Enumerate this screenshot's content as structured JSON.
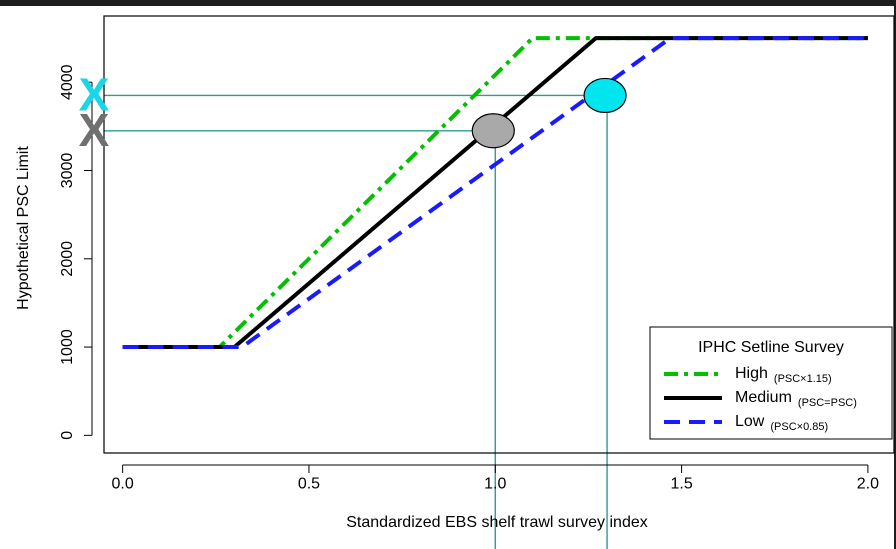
{
  "chart_data": {
    "type": "line",
    "xlabel": "Standardized EBS shelf trawl survey index",
    "ylabel": "Hypothetical PSC Limit",
    "xlim": [
      -0.05,
      2.07
    ],
    "ylim": [
      -200,
      4750
    ],
    "xticks": [
      0.0,
      0.5,
      1.0,
      1.5,
      2.0
    ],
    "xtick_labels": [
      "0.0",
      "0.5",
      "1.0",
      "1.5",
      "2.0"
    ],
    "yticks": [
      0,
      1000,
      2000,
      3000,
      4000
    ],
    "ytick_labels": [
      "0",
      "1000",
      "2000",
      "3000",
      "4000"
    ],
    "grid": false,
    "legend": {
      "title": "IPHC Setline Survey",
      "placement": "bottom-right",
      "entries": [
        {
          "label": "High",
          "note": "(PSC×1.15)",
          "color": "#00c000",
          "dash": "dotdash"
        },
        {
          "label": "Medium",
          "note": "(PSC=PSC)",
          "color": "#000000",
          "dash": "solid"
        },
        {
          "label": "Low",
          "note": "(PSC×0.85)",
          "color": "#1a1aff",
          "dash": "dash"
        }
      ]
    },
    "series": [
      {
        "key": "high",
        "color": "#00c000",
        "x": [
          0.0,
          0.26,
          1.1,
          2.0
        ],
        "y": [
          1000,
          1000,
          4500,
          4500
        ]
      },
      {
        "key": "medium",
        "color": "#000000",
        "x": [
          0.0,
          0.3,
          1.27,
          2.0
        ],
        "y": [
          1000,
          1000,
          4500,
          4500
        ]
      },
      {
        "key": "low",
        "color": "#1a1aff",
        "x": [
          0.0,
          0.32,
          1.47,
          2.0
        ],
        "y": [
          1000,
          1000,
          4500,
          4500
        ]
      }
    ],
    "highlights": [
      {
        "key": "gray",
        "x": 1.0,
        "y": 3450,
        "color": "#a9a9a9",
        "marker_label": "X",
        "marker_color": "#707070"
      },
      {
        "key": "cyan",
        "x": 1.3,
        "y": 3850,
        "color": "#00e5ee",
        "marker_label": "X",
        "marker_color": "#19d6e8"
      }
    ],
    "guide_color": "#2a9d8f"
  }
}
